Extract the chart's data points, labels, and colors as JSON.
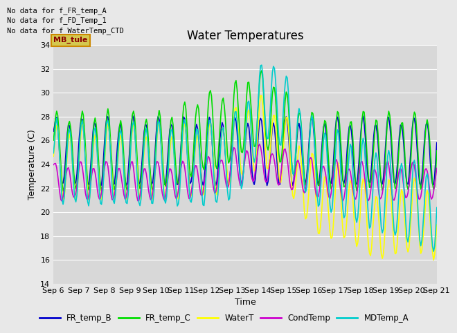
{
  "title": "Water Temperatures",
  "xlabel": "Time",
  "ylabel": "Temperature (C)",
  "ylim": [
    14,
    34
  ],
  "yticks": [
    14,
    16,
    18,
    20,
    22,
    24,
    26,
    28,
    30,
    32,
    34
  ],
  "xtick_labels": [
    "Sep 6",
    "Sep 7",
    "Sep 8",
    "Sep 9",
    "Sep 10",
    "Sep 11",
    "Sep 12",
    "Sep 13",
    "Sep 14",
    "Sep 15",
    "Sep 16",
    "Sep 17",
    "Sep 18",
    "Sep 19",
    "Sep 20",
    "Sep 21"
  ],
  "no_data_text": [
    "No data for f_FR_temp_A",
    "No data for f_FD_Temp_1",
    "No data for f_WaterTemp_CTD"
  ],
  "mb_tule_label": "MB_tule",
  "legend_entries": [
    "FR_temp_B",
    "FR_temp_C",
    "WaterT",
    "CondTemp",
    "MDTemp_A"
  ],
  "line_colors": {
    "FR_temp_B": "#0000cc",
    "FR_temp_C": "#00dd00",
    "WaterT": "#ffff00",
    "CondTemp": "#cc00cc",
    "MDTemp_A": "#00cccc"
  },
  "fig_bg_color": "#e8e8e8",
  "plot_bg_color": "#d8d8d8",
  "grid_color": "#ffffff",
  "title_fontsize": 12,
  "axis_label_fontsize": 9,
  "tick_fontsize": 8
}
